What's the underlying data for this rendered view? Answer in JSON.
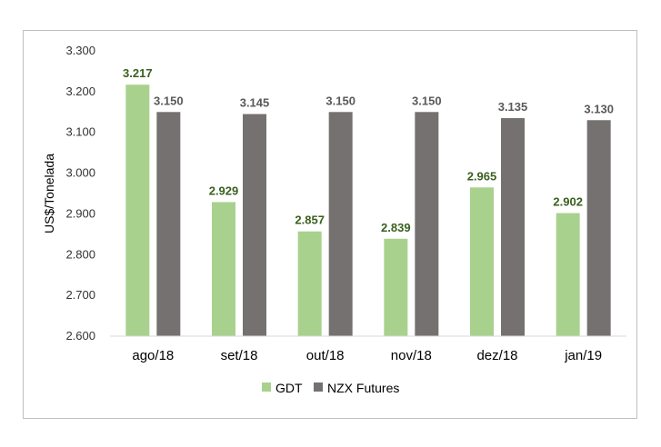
{
  "chart_data": {
    "type": "bar",
    "categories": [
      "ago/18",
      "set/18",
      "out/18",
      "nov/18",
      "dez/18",
      "jan/19"
    ],
    "series": [
      {
        "name": "GDT",
        "values": [
          3217,
          2929,
          2857,
          2839,
          2965,
          2902
        ],
        "labels": [
          "3.217",
          "2.929",
          "2.857",
          "2.839",
          "2.965",
          "2.902"
        ],
        "color": "#a9d18e"
      },
      {
        "name": "NZX Futures",
        "values": [
          3150,
          3145,
          3150,
          3150,
          3135,
          3130
        ],
        "labels": [
          "3.150",
          "3.145",
          "3.150",
          "3.150",
          "3.135",
          "3.130"
        ],
        "color": "#767171"
      }
    ],
    "ylabel": "US$/Tonelada",
    "xlabel": "",
    "ylim": [
      2600,
      3300
    ],
    "yticks": [
      2600,
      2700,
      2800,
      2900,
      3000,
      3100,
      3200,
      3300
    ],
    "ytick_labels": [
      "2.600",
      "2.700",
      "2.800",
      "2.900",
      "3.000",
      "3.100",
      "3.200",
      "3.300"
    ],
    "grid": false,
    "legend": "bottom"
  }
}
